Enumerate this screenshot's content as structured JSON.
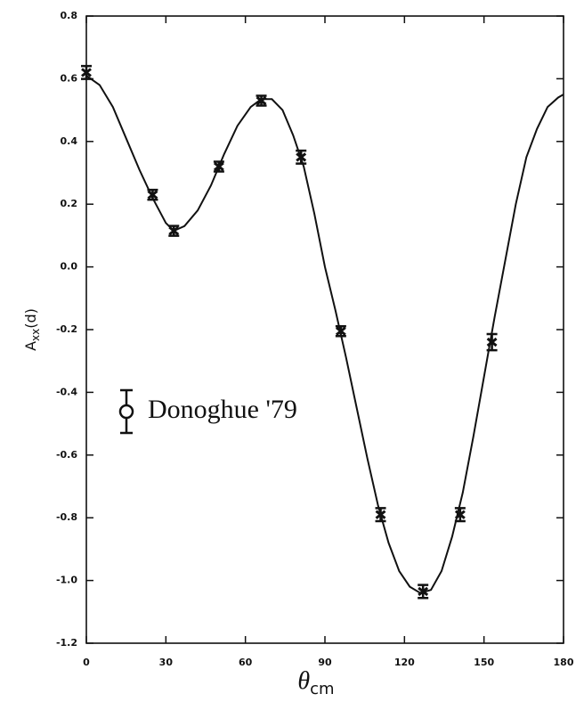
{
  "chart_data": {
    "type": "scatter",
    "ylabel": {
      "base": "A",
      "sub": "xx",
      "rest": "(d)"
    },
    "xlabel": {
      "base": "θ",
      "sub": "cm"
    },
    "xlim": [
      0,
      180
    ],
    "xticks": [
      0,
      30,
      60,
      90,
      120,
      150,
      180
    ],
    "ylim": [
      -1.2,
      0.8
    ],
    "yticks": [
      0.8,
      0.6,
      0.4,
      0.2,
      {
        "value": 0,
        "label": "0.0"
      },
      -0.2,
      -0.4,
      -0.6,
      -0.8,
      {
        "value": -1,
        "label": "-1.0"
      },
      -1.2
    ],
    "series": [
      {
        "name": "Donoghue '79",
        "color": "#111111",
        "x": [
          0,
          25,
          33,
          50,
          66,
          81,
          96,
          111,
          127,
          141,
          153
        ],
        "values": [
          0.62,
          0.23,
          0.115,
          0.32,
          0.53,
          0.35,
          -0.205,
          -0.79,
          -1.035,
          -0.79,
          -0.24
        ],
        "errors": [
          0.015,
          0.01,
          0.01,
          0.01,
          0.01,
          0.015,
          0.01,
          0.015,
          0.015,
          0.015,
          0.02
        ]
      }
    ],
    "curve": {
      "color": "#111111",
      "x": [
        0,
        5,
        10,
        15,
        20,
        25,
        30,
        33,
        37,
        42,
        47,
        52,
        57,
        62,
        66,
        70,
        74,
        78,
        82,
        86,
        90,
        94,
        98,
        102,
        106,
        110,
        114,
        118,
        122,
        126,
        130,
        134,
        138,
        142,
        146,
        150,
        154,
        158,
        162,
        166,
        170,
        174,
        178,
        180
      ],
      "values": [
        0.61,
        0.58,
        0.51,
        0.41,
        0.31,
        0.22,
        0.14,
        0.115,
        0.13,
        0.18,
        0.26,
        0.36,
        0.45,
        0.51,
        0.535,
        0.535,
        0.5,
        0.42,
        0.32,
        0.17,
        0,
        -0.14,
        -0.29,
        -0.45,
        -0.61,
        -0.76,
        -0.88,
        -0.97,
        -1.02,
        -1.04,
        -1.03,
        -0.97,
        -0.86,
        -0.72,
        -0.54,
        -0.35,
        -0.16,
        0.02,
        0.2,
        0.35,
        0.44,
        0.51,
        0.54,
        0.55
      ]
    }
  }
}
